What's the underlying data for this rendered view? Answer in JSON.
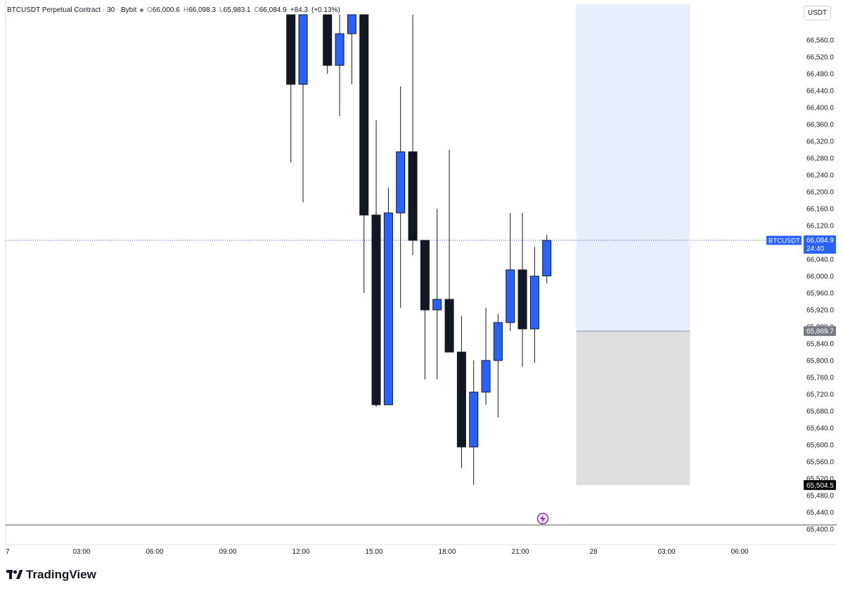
{
  "legend": {
    "symbol": "BTCUSDT Perpetual Contract",
    "interval": "30",
    "exchange": "Bybit",
    "open_label": "O",
    "open": "66,000.6",
    "high_label": "H",
    "high": "66,098.3",
    "low_label": "L",
    "low": "65,983.1",
    "close_label": "C",
    "close": "66,084.9",
    "change": "+84.3",
    "change_pct": "(+0.13%)"
  },
  "currency_button": "USDT",
  "price_tag": {
    "symbol": "BTCUSDT.P",
    "price": "66,084.9",
    "countdown": "24:40",
    "color": "#2962ff"
  },
  "level_tags": [
    {
      "price": "65,869.7",
      "color": "#787b86"
    },
    {
      "price": "65,504.5",
      "color": "#000000"
    }
  ],
  "brand": "TradingView",
  "colors": {
    "up": "#2962ff",
    "down": "#131722",
    "target_zone": "#e8eefc",
    "stop_zone": "#dedede"
  },
  "chart_data": {
    "type": "candlestick",
    "interval_minutes": 30,
    "y_ticks": [
      65400,
      65440,
      65480,
      65520,
      65560,
      65600,
      65640,
      65680,
      65720,
      65760,
      65800,
      65840,
      65880,
      65920,
      65960,
      66000,
      66040,
      66080,
      66120,
      66160,
      66200,
      66240,
      66280,
      66320,
      66360,
      66400,
      66440,
      66480,
      66520,
      66560
    ],
    "y_tick_labels": [
      "65,400.0",
      "65,440.0",
      "65,480.0",
      "65,520.0",
      "65,560.0",
      "65,600.0",
      "65,640.0",
      "65,680.0",
      "65,720.0",
      "65,760.0",
      "65,800.0",
      "65,840.0",
      "65,880.0",
      "65,920.0",
      "65,960.0",
      "66,000.0",
      "66,040.0",
      "66,080.0",
      "66,120.0",
      "66,160.0",
      "66,200.0",
      "66,240.0",
      "66,280.0",
      "66,320.0",
      "66,360.0",
      "66,400.0",
      "66,440.0",
      "66,480.0",
      "66,520.0",
      "66,560.0"
    ],
    "x_tick_labels": [
      "7",
      "03:00",
      "06:00",
      "09:00",
      "12:00",
      "15:00",
      "18:00",
      "21:00",
      "28",
      "03:00",
      "06:00"
    ],
    "x_tick_times": [
      "27 00:00",
      "27 03:00",
      "27 06:00",
      "27 09:00",
      "27 12:00",
      "27 15:00",
      "27 18:00",
      "27 21:00",
      "28 00:00",
      "28 03:00",
      "28 06:00"
    ],
    "current_price": 66084.9,
    "candles": [
      {
        "t": "27 11:30",
        "o": 66620,
        "h": 66620,
        "l": 66270,
        "c": 66455
      },
      {
        "t": "27 12:00",
        "o": 66455,
        "h": 66620,
        "l": 66175,
        "c": 66620
      },
      {
        "t": "27 13:00",
        "o": 66620,
        "h": 66620,
        "l": 66480,
        "c": 66500
      },
      {
        "t": "27 13:30",
        "o": 66500,
        "h": 66620,
        "l": 66380,
        "c": 66575
      },
      {
        "t": "27 14:00",
        "o": 66575,
        "h": 66620,
        "l": 66455,
        "c": 66620
      },
      {
        "t": "27 14:30",
        "o": 66620,
        "h": 66620,
        "l": 65960,
        "c": 66145
      },
      {
        "t": "27 15:00",
        "o": 66145,
        "h": 66370,
        "l": 65690,
        "c": 65695
      },
      {
        "t": "27 15:30",
        "o": 65695,
        "h": 66210,
        "l": 65695,
        "c": 66150
      },
      {
        "t": "27 16:00",
        "o": 66150,
        "h": 66450,
        "l": 65925,
        "c": 66295
      },
      {
        "t": "27 16:30",
        "o": 66295,
        "h": 66620,
        "l": 66050,
        "c": 66085
      },
      {
        "t": "27 17:00",
        "o": 66085,
        "h": 66085,
        "l": 65755,
        "c": 65920
      },
      {
        "t": "27 17:30",
        "o": 65920,
        "h": 66160,
        "l": 65755,
        "c": 65945
      },
      {
        "t": "27 18:00",
        "o": 65945,
        "h": 66300,
        "l": 65820,
        "c": 65820
      },
      {
        "t": "27 18:30",
        "o": 65820,
        "h": 65905,
        "l": 65545,
        "c": 65595
      },
      {
        "t": "27 19:00",
        "o": 65595,
        "h": 65800,
        "l": 65505,
        "c": 65725
      },
      {
        "t": "27 19:30",
        "o": 65725,
        "h": 65925,
        "l": 65695,
        "c": 65800
      },
      {
        "t": "27 20:00",
        "o": 65800,
        "h": 65910,
        "l": 65665,
        "c": 65890
      },
      {
        "t": "27 20:30",
        "o": 65890,
        "h": 66150,
        "l": 65870,
        "c": 66015
      },
      {
        "t": "27 21:00",
        "o": 66015,
        "h": 66150,
        "l": 65785,
        "c": 65875
      },
      {
        "t": "27 21:30",
        "o": 65875,
        "h": 66070,
        "l": 65795,
        "c": 66000
      },
      {
        "t": "27 22:00",
        "o": 66000.6,
        "h": 66098.3,
        "l": 65983.1,
        "c": 66084.9
      }
    ],
    "position_tool": {
      "entry": 65869.7,
      "target": 66620,
      "stop": 65504.5,
      "time_start": "27 23:00",
      "time_end": "28 03:30"
    }
  }
}
